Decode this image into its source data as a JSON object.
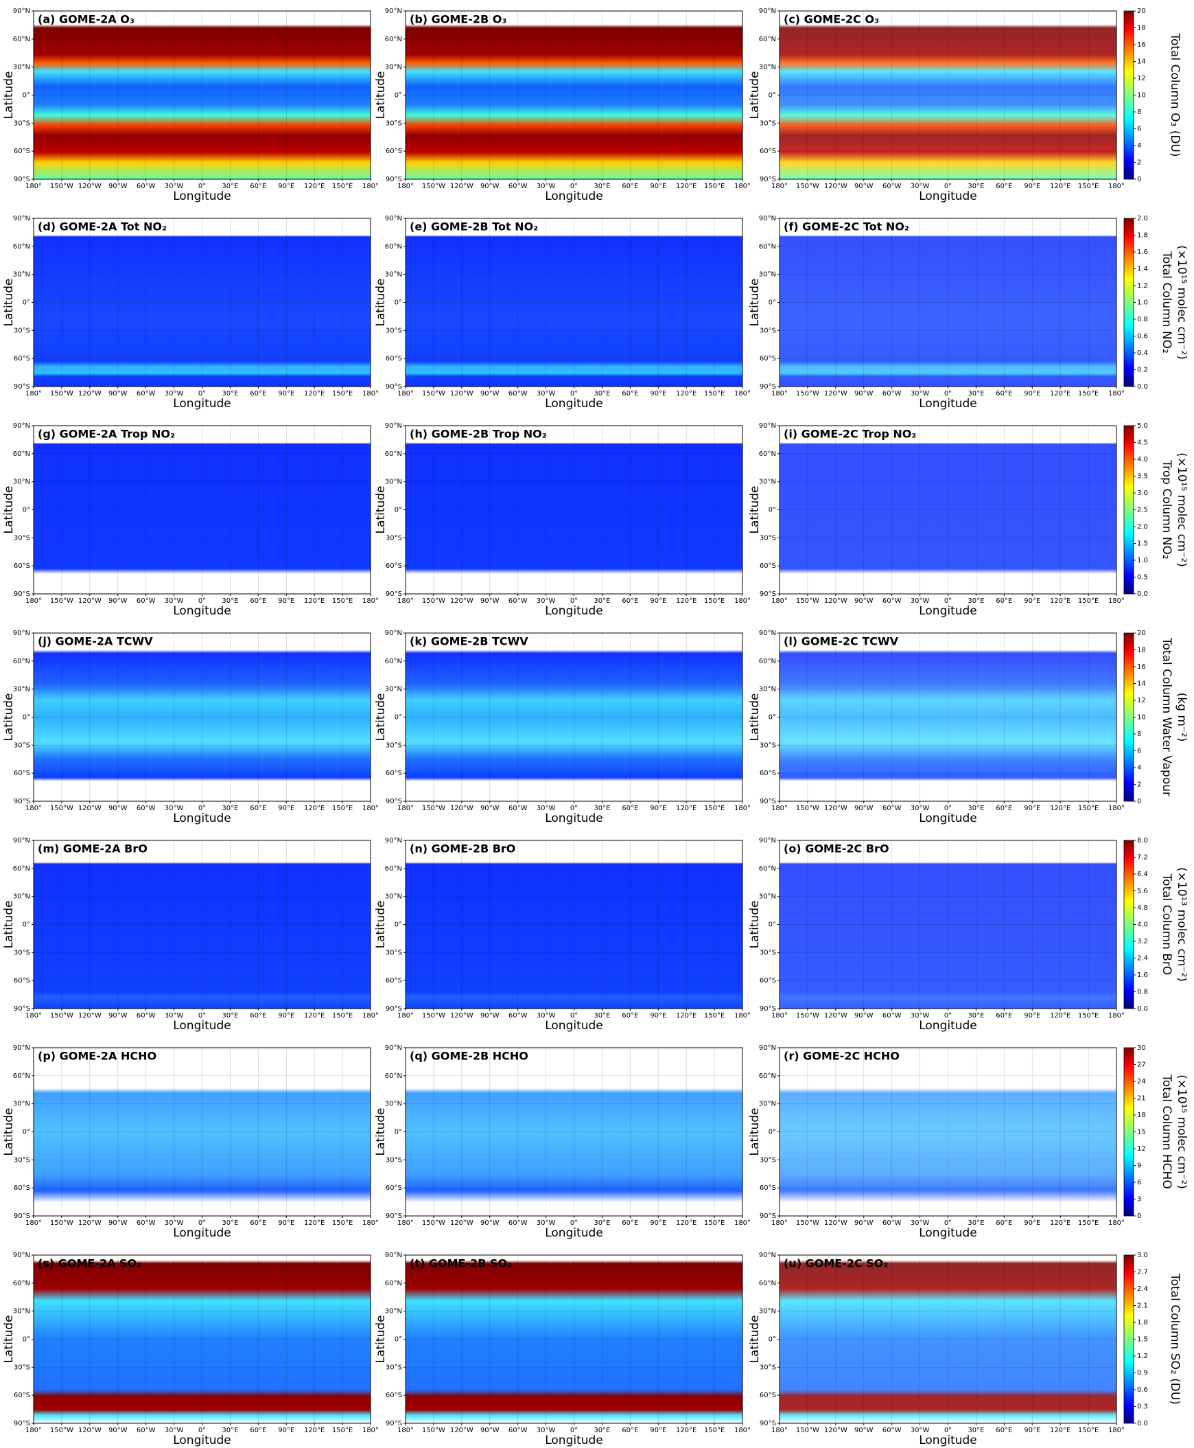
{
  "axes": {
    "xlabel": "Longitude",
    "ylabel": "Latitude",
    "xlim": [
      -180,
      180
    ],
    "ylim": [
      -90,
      90
    ],
    "xticks": [
      {
        "value": -180,
        "label": "180°"
      },
      {
        "value": -150,
        "label": "150°W"
      },
      {
        "value": -120,
        "label": "120°W"
      },
      {
        "value": -90,
        "label": "90°W"
      },
      {
        "value": -60,
        "label": "60°W"
      },
      {
        "value": -30,
        "label": "30°W"
      },
      {
        "value": 0,
        "label": "0°"
      },
      {
        "value": 30,
        "label": "30°E"
      },
      {
        "value": 60,
        "label": "60°E"
      },
      {
        "value": 90,
        "label": "90°E"
      },
      {
        "value": 120,
        "label": "120°E"
      },
      {
        "value": 150,
        "label": "150°E"
      },
      {
        "value": 180,
        "label": "180°"
      }
    ],
    "yticks": [
      {
        "value": 90,
        "label": "90°N"
      },
      {
        "value": 60,
        "label": "60°N"
      },
      {
        "value": 30,
        "label": "30°N"
      },
      {
        "value": 0,
        "label": "0°"
      },
      {
        "value": -30,
        "label": "30°S"
      },
      {
        "value": -60,
        "label": "60°S"
      },
      {
        "value": -90,
        "label": "90°S"
      }
    ]
  },
  "chart_data": [
    {
      "type": "heatmap",
      "colormap": "jet",
      "panels": [
        "(a) GOME-2A O₃",
        "(b) GOME-2B O₃",
        "(c) GOME-2C O₃"
      ],
      "colorbar_label": [
        "Total Column O₃ (DU)"
      ],
      "zlim": [
        0,
        20
      ],
      "zticks": [
        0,
        2,
        4,
        6,
        8,
        10,
        12,
        14,
        16,
        18,
        20
      ]
    },
    {
      "type": "heatmap",
      "colormap": "jet",
      "panels": [
        "(d) GOME-2A Tot NO₂",
        "(e) GOME-2B Tot NO₂",
        "(f) GOME-2C Tot NO₂"
      ],
      "colorbar_label": [
        "Total Column NO₂",
        "(×10¹⁵ molec cm⁻²)"
      ],
      "zlim": [
        0,
        2
      ],
      "zticks": [
        {
          "value": 0,
          "label": "0.0"
        },
        {
          "value": 0.2,
          "label": "0.2"
        },
        {
          "value": 0.4,
          "label": "0.4"
        },
        {
          "value": 0.6,
          "label": "0.6"
        },
        {
          "value": 0.8,
          "label": "0.8"
        },
        {
          "value": 1,
          "label": "1.0"
        },
        {
          "value": 1.2,
          "label": "1.2"
        },
        {
          "value": 1.4,
          "label": "1.4"
        },
        {
          "value": 1.6,
          "label": "1.6"
        },
        {
          "value": 1.8,
          "label": "1.8"
        },
        {
          "value": 2,
          "label": "2.0"
        }
      ]
    },
    {
      "type": "heatmap",
      "colormap": "jet",
      "panels": [
        "(g) GOME-2A Trop NO₂",
        "(h) GOME-2B Trop NO₂",
        "(i) GOME-2C Trop NO₂"
      ],
      "colorbar_label": [
        "Trop Column NO₂",
        "(×10¹⁵ molec cm⁻²)"
      ],
      "zlim": [
        0,
        5
      ],
      "zticks": [
        {
          "value": 0,
          "label": "0.0"
        },
        0.5,
        {
          "value": 1,
          "label": "1.0"
        },
        1.5,
        {
          "value": 2,
          "label": "2.0"
        },
        2.5,
        {
          "value": 3,
          "label": "3.0"
        },
        3.5,
        {
          "value": 4,
          "label": "4.0"
        },
        4.5,
        {
          "value": 5,
          "label": "5.0"
        }
      ]
    },
    {
      "type": "heatmap",
      "colormap": "jet",
      "panels": [
        "(j) GOME-2A TCWV",
        "(k) GOME-2B TCWV",
        "(l) GOME-2C TCWV"
      ],
      "colorbar_label": [
        "Total Column Water Vapour",
        "(kg m⁻²)"
      ],
      "zlim": [
        0,
        20
      ],
      "zticks": [
        0,
        2,
        4,
        6,
        8,
        10,
        12,
        14,
        16,
        18,
        20
      ]
    },
    {
      "type": "heatmap",
      "colormap": "jet",
      "panels": [
        "(m) GOME-2A BrO",
        "(n) GOME-2B BrO",
        "(o) GOME-2C BrO"
      ],
      "colorbar_label": [
        "Total Column BrO",
        "(×10¹³ molec cm⁻²)"
      ],
      "zlim": [
        0,
        8
      ],
      "zticks": [
        {
          "value": 0,
          "label": "0.0"
        },
        0.8,
        1.6,
        2.4,
        3.2,
        {
          "value": 4,
          "label": "4.0"
        },
        4.8,
        5.6,
        6.4,
        7.2,
        {
          "value": 8,
          "label": "8.0"
        }
      ]
    },
    {
      "type": "heatmap",
      "colormap": "jet",
      "panels": [
        "(p) GOME-2A HCHO",
        "(q) GOME-2B HCHO",
        "(r) GOME-2C HCHO"
      ],
      "colorbar_label": [
        "Total Column HCHO",
        "(×10¹⁵ molec cm⁻²)"
      ],
      "zlim": [
        0,
        30
      ],
      "zticks": [
        0,
        3,
        6,
        9,
        12,
        15,
        18,
        21,
        24,
        27,
        30
      ]
    },
    {
      "type": "heatmap",
      "colormap": "jet",
      "panels": [
        "(s) GOME-2A SO₂",
        "(t) GOME-2B SO₂",
        "(u) GOME-2C SO₂"
      ],
      "colorbar_label": [
        "Total Column SO₂ (DU)"
      ],
      "zlim": [
        0,
        3
      ],
      "zticks": [
        {
          "value": 0,
          "label": "0.0"
        },
        0.3,
        0.6,
        0.9,
        1.2,
        1.5,
        1.8,
        2.1,
        2.4,
        2.7,
        {
          "value": 3,
          "label": "3.0"
        }
      ]
    }
  ]
}
